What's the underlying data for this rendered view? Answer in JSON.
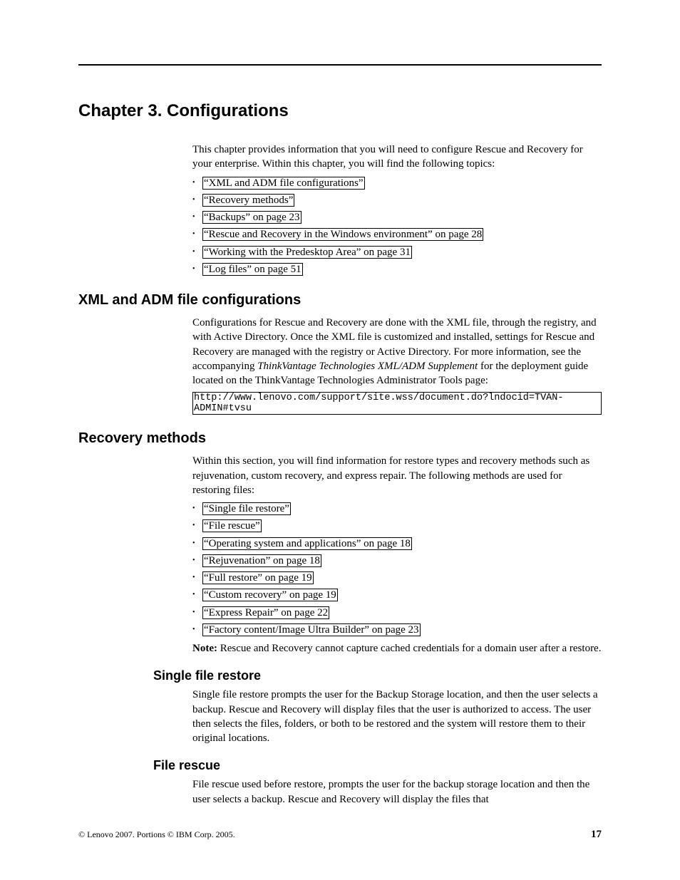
{
  "chapter": {
    "title": "Chapter 3. Configurations",
    "intro": "This chapter provides information that you will need to configure Rescue and Recovery for your enterprise. Within this chapter, you will find the following topics:",
    "topics": [
      "“XML and ADM file configurations”",
      "“Recovery methods”",
      "“Backups” on page 23",
      "“Rescue and Recovery in the Windows environment” on page 28",
      "“Working with the Predesktop Area” on page 31",
      "“Log files” on page 51"
    ]
  },
  "xml_section": {
    "title": "XML and ADM file configurations",
    "para_a": "Configurations for Rescue and Recovery are done with the XML file, through the registry, and with Active Directory. Once the XML file is customized and installed, settings for Rescue and Recovery are managed with the registry or Active Directory. For more information, see the accompanying ",
    "para_italic": "ThinkVantage Technologies XML/ADM Supplement",
    "para_b": " for the deployment guide located on the ThinkVantage Technologies Administrator Tools page:",
    "url": "http://www.lenovo.com/support/site.wss/document.do?lndocid=TVAN-ADMIN#tvsu"
  },
  "recovery": {
    "title": "Recovery methods",
    "intro": "Within this section, you will find information for restore types and recovery methods such as rejuvenation, custom recovery, and express repair. The following methods are used for restoring files:",
    "items": [
      "“Single file restore”",
      "“File rescue”",
      "“Operating system and applications” on page 18",
      "“Rejuvenation” on page 18",
      "“Full restore” on page 19",
      "“Custom recovery” on page 19",
      "“Express Repair” on page 22",
      "“Factory content/Image Ultra Builder” on page 23"
    ],
    "note_label": "Note:",
    "note_body": " Rescue and Recovery cannot capture cached credentials for a domain user after a restore."
  },
  "single_file": {
    "title": "Single file restore",
    "body": "Single file restore prompts the user for the Backup Storage location, and then the user selects a backup. Rescue and Recovery will display files that the user is authorized to access. The user then selects the files, folders, or both to be restored and the system will restore them to their original locations."
  },
  "file_rescue": {
    "title": "File rescue",
    "body": "File rescue used before restore, prompts the user for the backup storage location and then the user selects a backup. Rescue and Recovery will display the files that"
  },
  "footer": {
    "copyright": "© Lenovo 2007. Portions © IBM Corp. 2005.",
    "page": "17"
  }
}
